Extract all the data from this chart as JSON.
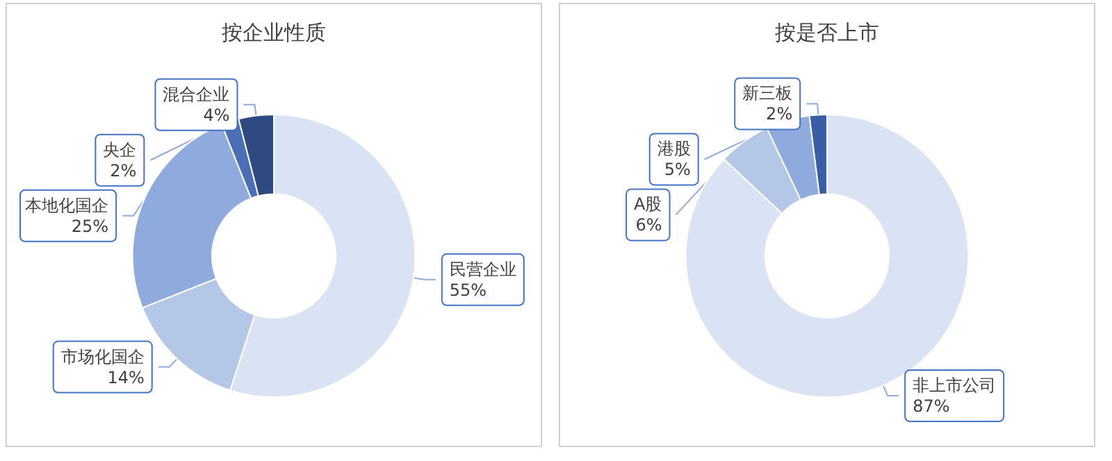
{
  "chart_data": [
    {
      "type": "donut",
      "title": "按企业性质",
      "categories": [
        "民营企业",
        "市场化国企",
        "本地化国企",
        "央企",
        "混合企业"
      ],
      "values": [
        55,
        14,
        25,
        2,
        4
      ],
      "colors": [
        "#dae3f3",
        "#b4c7e7",
        "#8faadc",
        "#4a6fb5",
        "#2f4a80"
      ],
      "value_labels": [
        "55%",
        "14%",
        "25%",
        "2%",
        "4%"
      ]
    },
    {
      "type": "donut",
      "title": "按是否上市",
      "categories": [
        "非上市公司",
        "A股",
        "港股",
        "新三板"
      ],
      "values": [
        87,
        6,
        5,
        2
      ],
      "colors": [
        "#dae3f3",
        "#b4c7e7",
        "#8faadc",
        "#3a5ea6"
      ],
      "value_labels": [
        "87%",
        "6%",
        "5%",
        "2%"
      ]
    }
  ]
}
